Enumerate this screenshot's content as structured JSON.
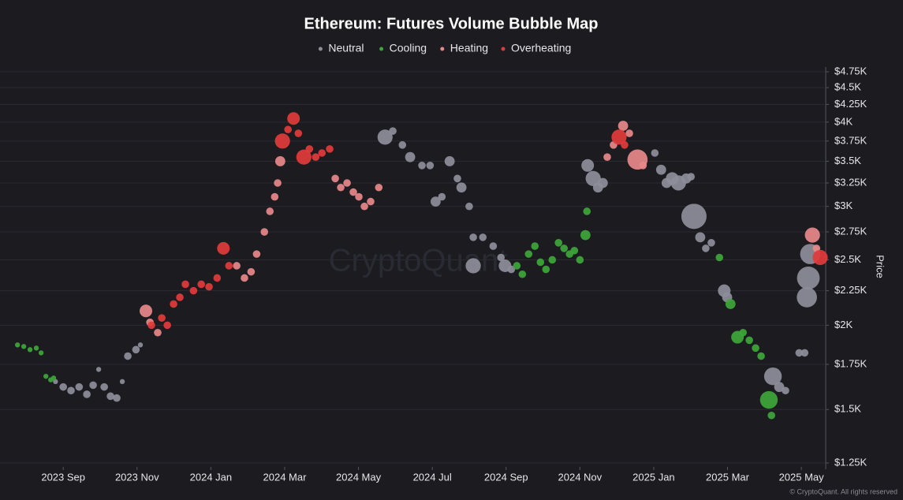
{
  "chart_data": {
    "type": "bubble",
    "title": "Ethereum: Futures Volume Bubble Map",
    "y_label": "Price",
    "watermark": "CryptoQuant",
    "footer": "© CryptoQuant. All rights reserved",
    "legend": "top-center",
    "log_y": true,
    "grid": true,
    "xlim": [
      -1.5,
      20.66
    ],
    "xticks": [
      {
        "value": 0,
        "label": "2023 Sep"
      },
      {
        "value": 2,
        "label": "2023 Nov"
      },
      {
        "value": 4,
        "label": "2024 Jan"
      },
      {
        "value": 6,
        "label": "2024 Mar"
      },
      {
        "value": 8,
        "label": "2024 May"
      },
      {
        "value": 10,
        "label": "2024 Jul"
      },
      {
        "value": 12,
        "label": "2024 Sep"
      },
      {
        "value": 14,
        "label": "2024 Nov"
      },
      {
        "value": 16,
        "label": "2025 Jan"
      },
      {
        "value": 18,
        "label": "2025 Mar"
      },
      {
        "value": 20,
        "label": "2025 May"
      }
    ],
    "ylim": [
      1250,
      4750
    ],
    "yticks": [
      {
        "value": 1250,
        "label": "$1.25K"
      },
      {
        "value": 1500,
        "label": "$1.5K"
      },
      {
        "value": 1750,
        "label": "$1.75K"
      },
      {
        "value": 2000,
        "label": "$2K"
      },
      {
        "value": 2250,
        "label": "$2.25K"
      },
      {
        "value": 2500,
        "label": "$2.5K"
      },
      {
        "value": 2750,
        "label": "$2.75K"
      },
      {
        "value": 3000,
        "label": "$3K"
      },
      {
        "value": 3250,
        "label": "$3.25K"
      },
      {
        "value": 3500,
        "label": "$3.5K"
      },
      {
        "value": 3750,
        "label": "$3.75K"
      },
      {
        "value": 4000,
        "label": "$4K"
      },
      {
        "value": 4250,
        "label": "$4.25K"
      },
      {
        "value": 4500,
        "label": "$4.5K"
      },
      {
        "value": 4750,
        "label": "$4.75K"
      }
    ],
    "series": [
      {
        "name": "Neutral",
        "color": "#8e8e9b",
        "x": [
          -0.21,
          0,
          0.21,
          0.43,
          0.64,
          0.81,
          0.96,
          1.11,
          1.28,
          1.45,
          1.6,
          1.75,
          1.97,
          2.09,
          8.72,
          8.93,
          9.19,
          9.4,
          9.72,
          9.94,
          10.09,
          10.26,
          10.47,
          10.68,
          10.79,
          11.0,
          11.11,
          11.11,
          11.37,
          11.65,
          11.86,
          11.97,
          12.14,
          14.21,
          14.36,
          14.49,
          14.62,
          16.03,
          16.2,
          16.35,
          16.5,
          16.67,
          16.88,
          17.01,
          17.09,
          17.26,
          17.41,
          17.56,
          17.91,
          17.99,
          19.23,
          19.4,
          19.57,
          19.94,
          20.09,
          20.15,
          20.19,
          20.24
        ],
        "values": [
          1650,
          1620,
          1600,
          1620,
          1580,
          1630,
          1720,
          1620,
          1570,
          1560,
          1650,
          1800,
          1840,
          1870,
          3800,
          3880,
          3700,
          3550,
          3450,
          3450,
          3050,
          3100,
          3500,
          3300,
          3200,
          3000,
          2700,
          2450,
          2700,
          2620,
          2520,
          2450,
          2420,
          3450,
          3300,
          3200,
          3250,
          3600,
          3400,
          3250,
          3300,
          3250,
          3300,
          3320,
          2900,
          2700,
          2600,
          2650,
          2250,
          2200,
          1680,
          1620,
          1600,
          1820,
          1820,
          2200,
          2350,
          2550
        ],
        "sizes": [
          2,
          3,
          3,
          3,
          3,
          3,
          2,
          3,
          3,
          3,
          2,
          3,
          3,
          2,
          6,
          3,
          3,
          4,
          3,
          3,
          4,
          3,
          4,
          3,
          4,
          3,
          3,
          6,
          3,
          3,
          3,
          5,
          3,
          5,
          6,
          4,
          4,
          3,
          4,
          4,
          5,
          6,
          4,
          3,
          10,
          4,
          3,
          3,
          5,
          4,
          7,
          4,
          3,
          3,
          3,
          8,
          9,
          8
        ]
      },
      {
        "name": "Cooling",
        "color": "#3da63a",
        "x": [
          -1.24,
          -1.07,
          -0.9,
          -0.73,
          -0.6,
          -0.47,
          -0.34,
          -0.26,
          12.29,
          12.44,
          12.61,
          12.78,
          12.93,
          13.08,
          13.25,
          13.42,
          13.57,
          13.72,
          13.85,
          14.0,
          14.15,
          14.19,
          17.78,
          18.08,
          18.27,
          18.42,
          18.59,
          18.76,
          18.91,
          19.12,
          19.19
        ],
        "values": [
          1870,
          1860,
          1840,
          1850,
          1820,
          1680,
          1660,
          1670,
          2450,
          2380,
          2550,
          2620,
          2480,
          2420,
          2500,
          2650,
          2600,
          2550,
          2580,
          2500,
          2720,
          2950,
          2520,
          2150,
          1920,
          1950,
          1900,
          1850,
          1800,
          1550,
          1470
        ],
        "sizes": [
          2,
          2,
          2,
          2,
          2,
          2,
          2,
          2,
          3,
          3,
          3,
          3,
          3,
          3,
          3,
          3,
          3,
          3,
          3,
          3,
          4,
          3,
          3,
          4,
          5,
          3,
          3,
          3,
          3,
          7,
          3
        ]
      },
      {
        "name": "Heating",
        "color": "#e8888a",
        "x": [
          2.24,
          2.35,
          2.56,
          4.7,
          4.91,
          5.09,
          5.24,
          5.45,
          5.6,
          5.73,
          5.81,
          5.88,
          7.37,
          7.52,
          7.69,
          7.86,
          8.01,
          8.16,
          8.33,
          8.55,
          14.74,
          14.91,
          15.17,
          15.34,
          15.56,
          15.71,
          20.3,
          20.41
        ],
        "values": [
          2100,
          2020,
          1950,
          2450,
          2350,
          2400,
          2550,
          2750,
          2950,
          3100,
          3250,
          3500,
          3300,
          3200,
          3250,
          3150,
          3100,
          3000,
          3050,
          3200,
          3550,
          3700,
          3950,
          3850,
          3520,
          3450,
          2720,
          2600
        ],
        "sizes": [
          5,
          3,
          3,
          3,
          3,
          3,
          3,
          3,
          3,
          3,
          3,
          4,
          3,
          3,
          3,
          3,
          3,
          3,
          3,
          3,
          3,
          3,
          4,
          3,
          8,
          3,
          6,
          3
        ]
      },
      {
        "name": "Overheating",
        "color": "#e23b3b",
        "x": [
          2.39,
          2.67,
          2.82,
          2.99,
          3.16,
          3.31,
          3.53,
          3.74,
          3.95,
          4.17,
          4.34,
          4.49,
          5.94,
          6.09,
          6.24,
          6.37,
          6.52,
          6.67,
          6.84,
          7.01,
          7.22,
          15.06,
          15.21,
          20.51
        ],
        "values": [
          2000,
          2050,
          2000,
          2150,
          2200,
          2300,
          2250,
          2300,
          2280,
          2350,
          2600,
          2450,
          3750,
          3900,
          4050,
          3850,
          3550,
          3650,
          3550,
          3600,
          3650,
          3800,
          3700,
          2520
        ],
        "sizes": [
          3,
          3,
          3,
          3,
          3,
          3,
          3,
          3,
          3,
          3,
          5,
          3,
          6,
          3,
          5,
          3,
          6,
          3,
          3,
          3,
          3,
          6,
          3,
          6
        ]
      }
    ]
  }
}
